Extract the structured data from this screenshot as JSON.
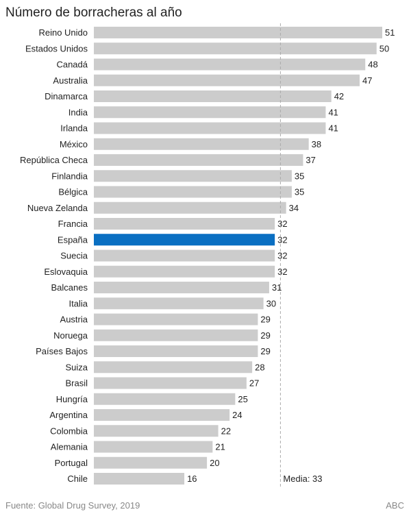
{
  "chart_data": {
    "type": "bar",
    "orientation": "horizontal",
    "title": "Número de borracheras al año",
    "categories": [
      "Reino Unido",
      "Estados Unidos",
      "Canadá",
      "Australia",
      "Dinamarca",
      "India",
      "Irlanda",
      "México",
      "República Checa",
      "Finlandia",
      "Bélgica",
      "Nueva Zelanda",
      "Francia",
      "España",
      "Suecia",
      "Eslovaquia",
      "Balcanes",
      "Italia",
      "Austria",
      "Noruega",
      "Países Bajos",
      "Suiza",
      "Brasil",
      "Hungría",
      "Argentina",
      "Colombia",
      "Alemania",
      "Portugal",
      "Chile"
    ],
    "values": [
      51,
      50,
      48,
      47,
      42,
      41,
      41,
      38,
      37,
      35,
      35,
      34,
      32,
      32,
      32,
      32,
      31,
      30,
      29,
      29,
      29,
      28,
      27,
      25,
      24,
      22,
      21,
      20,
      16
    ],
    "highlight": "España",
    "xlim": [
      0,
      51
    ],
    "grid": false,
    "reference_line": {
      "value": 33,
      "label": "Media: 33",
      "style": "dashed"
    },
    "colors": {
      "bar": "#cccccc",
      "highlight": "#0a6fc2",
      "reference": "#aaaaaa"
    }
  },
  "footer": {
    "source": "Fuente: Global Drug Survey, 2019",
    "brand": "ABC"
  }
}
